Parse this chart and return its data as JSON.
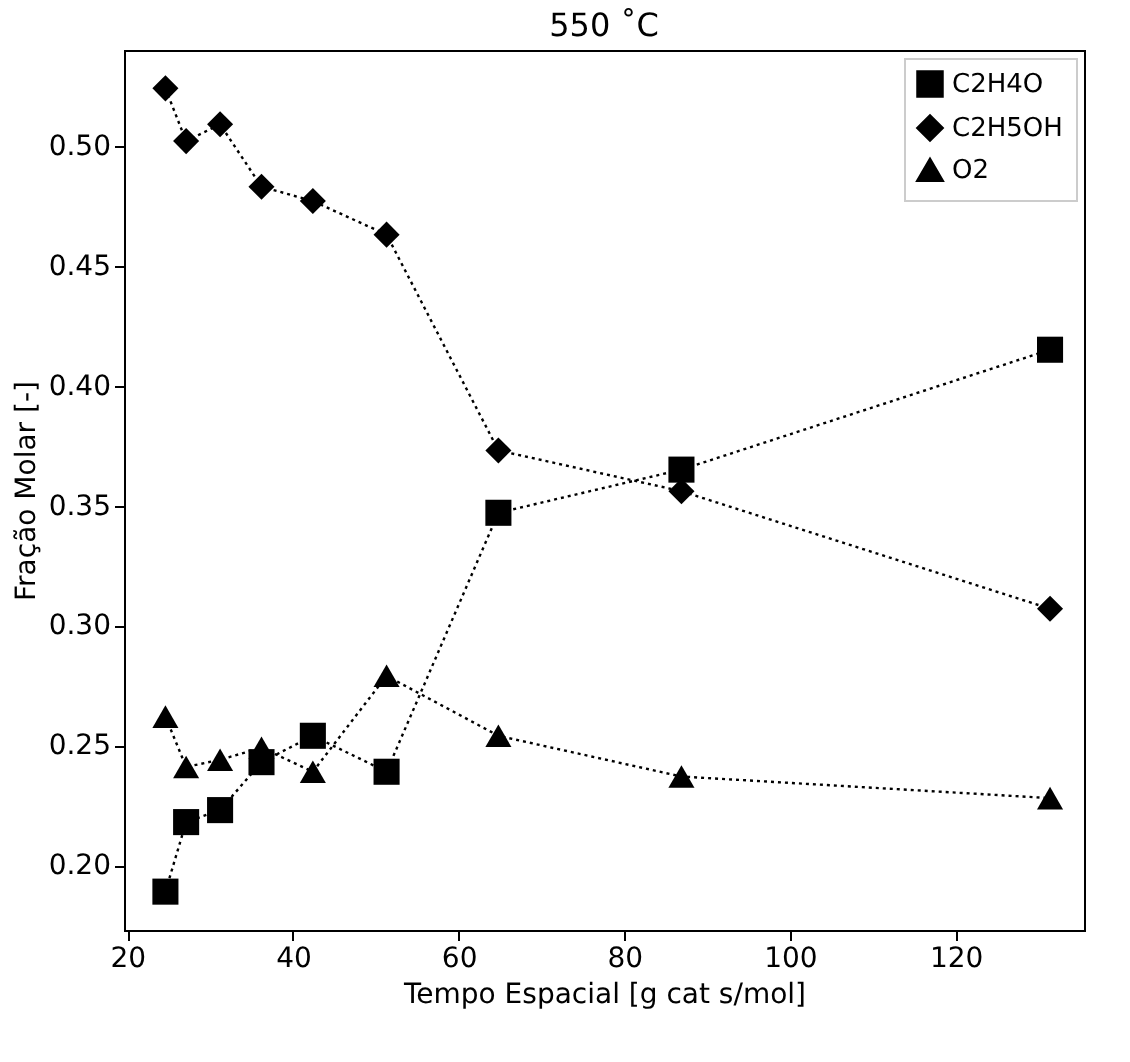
{
  "chart_data": {
    "type": "line",
    "title": "550 ˚C",
    "xlabel": "Tempo Espacial [g cat s/mol]",
    "ylabel": "Fração Molar [-]",
    "x": [
      24.6,
      27.1,
      31.2,
      36.2,
      42.4,
      51.3,
      64.8,
      86.9,
      131.4
    ],
    "series": [
      {
        "name": "C2H4O",
        "color": "#000000",
        "marker": "square",
        "values": [
          0.189,
          0.218,
          0.223,
          0.243,
          0.254,
          0.239,
          0.347,
          0.365,
          0.415
        ]
      },
      {
        "name": "C2H5OH",
        "color": "#000000",
        "marker": "diamond",
        "values": [
          0.524,
          0.502,
          0.509,
          0.483,
          0.477,
          0.463,
          0.373,
          0.356,
          0.307
        ]
      },
      {
        "name": "O2",
        "color": "#000000",
        "marker": "triangle",
        "values": [
          0.262,
          0.241,
          0.244,
          0.249,
          0.239,
          0.279,
          0.254,
          0.237,
          0.228
        ]
      }
    ],
    "xlim": [
      19.6,
      135.5
    ],
    "ylim": [
      0.173,
      0.54
    ],
    "xticks": [
      20,
      40,
      60,
      80,
      100,
      120
    ],
    "yticks": [
      {
        "value": 0.2,
        "label": "0.20"
      },
      0.25,
      {
        "value": 0.3,
        "label": "0.30"
      },
      0.35,
      {
        "value": 0.4,
        "label": "0.40"
      },
      0.45,
      {
        "value": 0.5,
        "label": "0.50"
      }
    ],
    "line_style": "dotted",
    "grid": false,
    "legend": "top right"
  }
}
